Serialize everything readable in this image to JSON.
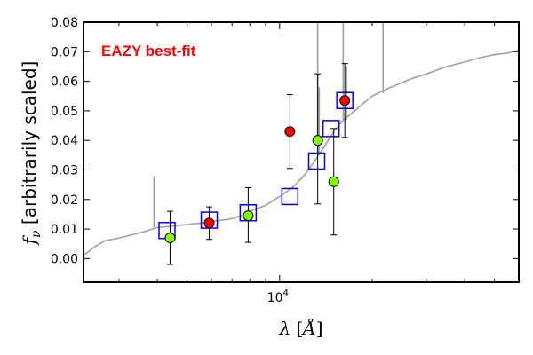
{
  "chart_data": {
    "type": "scatter",
    "annotation": "EAZY best-fit",
    "annotation_color": "#ff0000",
    "xlabel_math": {
      "symbol": "λ",
      "bracket_open": " [",
      "unit": "Å",
      "bracket_close": "]"
    },
    "ylabel_math": {
      "symbol": "f",
      "subscript": "ν",
      "text": " [arbitrarily scaled]"
    },
    "x_scale": "log",
    "xlim": [
      2300,
      60000
    ],
    "ylim": [
      -0.008,
      0.08
    ],
    "x_tick_label": {
      "base": "10",
      "exponent": "4",
      "value": 10000
    },
    "x_minor_ticks": [
      3000,
      4000,
      5000,
      6000,
      7000,
      8000,
      9000,
      20000,
      30000,
      40000,
      50000
    ],
    "y_ticks": [
      0.0,
      0.01,
      0.02,
      0.03,
      0.04,
      0.05,
      0.06,
      0.07,
      0.08
    ],
    "y_tick_labels": [
      "0.00",
      "0.01",
      "0.02",
      "0.03",
      "0.04",
      "0.05",
      "0.06",
      "0.07",
      "0.08"
    ],
    "grid": false,
    "series": [
      {
        "kind": "template_line",
        "color": "#a0a0a0",
        "x": [
          2300,
          2500,
          2700,
          3000,
          3300,
          3600,
          4000,
          4500,
          5000,
          5500,
          6000,
          6500,
          7000,
          7500,
          8000,
          9000,
          10000,
          11000,
          12000,
          13000,
          14000,
          15000,
          16000,
          18000,
          20000,
          23000,
          27000,
          30000,
          35000,
          40000,
          45000,
          50000,
          55000,
          60000
        ],
        "y": [
          0.001,
          0.004,
          0.006,
          0.007,
          0.008,
          0.009,
          0.0105,
          0.011,
          0.0115,
          0.012,
          0.0125,
          0.013,
          0.0135,
          0.0145,
          0.016,
          0.018,
          0.021,
          0.024,
          0.028,
          0.033,
          0.038,
          0.043,
          0.0465,
          0.051,
          0.055,
          0.058,
          0.061,
          0.0625,
          0.065,
          0.0665,
          0.068,
          0.069,
          0.0695,
          0.0705
        ],
        "spikes": [
          {
            "x": 3900,
            "y_base": 0.0105,
            "y_top": 0.028
          },
          {
            "x": 13300,
            "y_base": 0.035,
            "y_top": 0.08
          },
          {
            "x": 13450,
            "y_base": 0.035,
            "y_top": 0.058
          },
          {
            "x": 16100,
            "y_base": 0.047,
            "y_top": 0.08
          },
          {
            "x": 16500,
            "y_base": 0.047,
            "y_top": 0.065
          },
          {
            "x": 21700,
            "y_base": 0.056,
            "y_top": 0.08
          }
        ]
      },
      {
        "kind": "model_photometry",
        "marker": "open-square",
        "color": "#0000ff",
        "x": [
          4300,
          5900,
          7900,
          10800,
          13200,
          14700,
          16300
        ],
        "y": [
          0.0095,
          0.013,
          0.0155,
          0.021,
          0.033,
          0.044,
          0.0535
        ]
      },
      {
        "kind": "observed_detections",
        "marker": "filled-circle",
        "color": "#7fff00",
        "x": [
          4400,
          7900,
          13300,
          15000
        ],
        "y": [
          0.007,
          0.0145,
          0.04,
          0.026
        ],
        "yerr_low": [
          0.009,
          0.009,
          0.0215,
          0.018
        ],
        "yerr_high": [
          0.009,
          0.0095,
          0.0225,
          0.018
        ]
      },
      {
        "kind": "observed_upper",
        "marker": "filled-circle",
        "color": "#ff0000",
        "x": [
          5900,
          10800,
          16300
        ],
        "y": [
          0.012,
          0.043,
          0.0535
        ],
        "yerr_low": [
          0.0055,
          0.0125,
          0.0125
        ],
        "yerr_high": [
          0.0055,
          0.0125,
          0.0125
        ]
      }
    ]
  }
}
